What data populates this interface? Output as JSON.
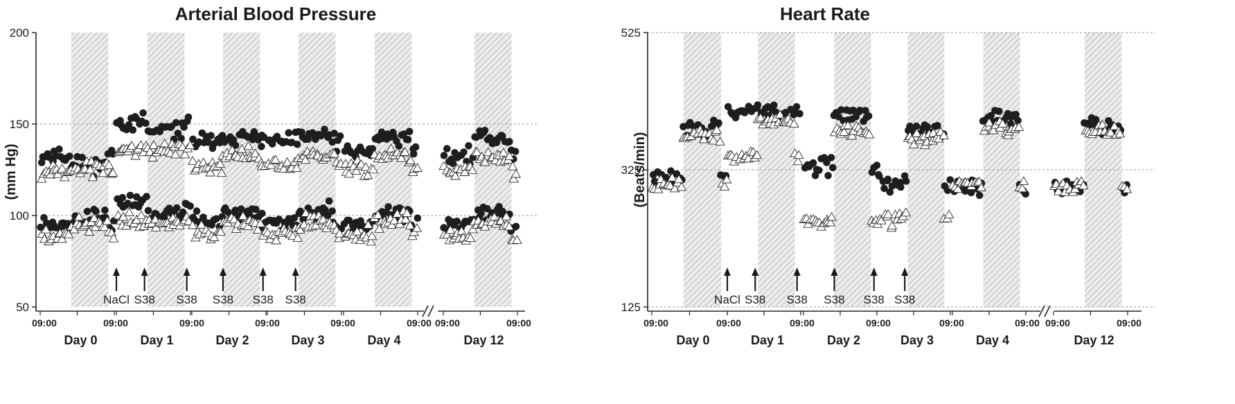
{
  "chart_data": [
    {
      "id": "bp",
      "type": "scatter",
      "title": "Arterial Blood Pressure",
      "ylabel": "(mm Hg)",
      "xlabel": "",
      "ylim": [
        50,
        200
      ],
      "yticks": [
        50,
        100,
        150,
        200
      ],
      "grid_y": [
        100,
        150
      ],
      "segments": [
        {
          "label": "Day 0",
          "start_tick": "09:00",
          "end_tick": "09:00",
          "dark_period": [
            0.42,
            0.92
          ]
        },
        {
          "label": "Day 1",
          "start_tick": "",
          "end_tick": "09:00",
          "dark_period": [
            0.42,
            0.92
          ]
        },
        {
          "label": "Day 2",
          "start_tick": "",
          "end_tick": "09:00",
          "dark_period": [
            0.42,
            0.92
          ]
        },
        {
          "label": "Day 3",
          "start_tick": "",
          "end_tick": "09:00",
          "dark_period": [
            0.42,
            0.92
          ]
        },
        {
          "label": "Day 4",
          "start_tick": "",
          "end_tick": "09:00",
          "dark_period": [
            0.42,
            0.92
          ]
        },
        {
          "label": "Day 12",
          "start_tick": "09:00",
          "end_tick": "09:00",
          "dark_period": [
            0.42,
            0.92
          ]
        }
      ],
      "annotations": [
        {
          "text": "NaCl",
          "day": 1.0
        },
        {
          "text": "S38",
          "day": 1.38
        },
        {
          "text": "S38",
          "day": 1.95
        },
        {
          "text": "S38",
          "day": 2.42
        },
        {
          "text": "S38",
          "day": 2.96
        },
        {
          "text": "S38",
          "day": 3.38
        }
      ],
      "series": [
        {
          "marker": "filled-circle",
          "measure": "systolic",
          "day_means": [
            {
              "day": 0,
              "light": 133,
              "dark": 128
            },
            {
              "day": 1,
              "light": 151,
              "dark": 146
            },
            {
              "day": 2,
              "light": 140,
              "dark": 143
            },
            {
              "day": 3,
              "light": 140,
              "dark": 143
            },
            {
              "day": 4,
              "light": 135,
              "dark": 143
            },
            {
              "day": 12,
              "light": 133,
              "dark": 142
            }
          ]
        },
        {
          "marker": "open-triangle",
          "measure": "systolic",
          "day_means": [
            {
              "day": 0,
              "light": 124,
              "dark": 126
            },
            {
              "day": 1,
              "light": 136,
              "dark": 136
            },
            {
              "day": 2,
              "light": 127,
              "dark": 133
            },
            {
              "day": 3,
              "light": 127,
              "dark": 133
            },
            {
              "day": 4,
              "light": 126,
              "dark": 133
            },
            {
              "day": 12,
              "light": 124,
              "dark": 132
            }
          ]
        },
        {
          "marker": "filled-circle",
          "measure": "diastolic",
          "day_means": [
            {
              "day": 0,
              "light": 94,
              "dark": 98
            },
            {
              "day": 1,
              "light": 107,
              "dark": 101
            },
            {
              "day": 2,
              "light": 97,
              "dark": 101
            },
            {
              "day": 3,
              "light": 96,
              "dark": 101
            },
            {
              "day": 4,
              "light": 95,
              "dark": 101
            },
            {
              "day": 12,
              "light": 94,
              "dark": 101
            }
          ]
        },
        {
          "marker": "open-triangle",
          "measure": "diastolic",
          "day_means": [
            {
              "day": 0,
              "light": 90,
              "dark": 95
            },
            {
              "day": 1,
              "light": 98,
              "dark": 96
            },
            {
              "day": 2,
              "light": 91,
              "dark": 96
            },
            {
              "day": 3,
              "light": 90,
              "dark": 96
            },
            {
              "day": 4,
              "light": 90,
              "dark": 96
            },
            {
              "day": 12,
              "light": 88,
              "dark": 96
            }
          ]
        }
      ]
    },
    {
      "id": "hr",
      "type": "scatter",
      "title": "Heart Rate",
      "ylabel": "(Beats/min)",
      "xlabel": "",
      "ylim": [
        125,
        525
      ],
      "yticks": [
        125,
        325,
        525
      ],
      "grid_y": [
        125,
        325,
        525
      ],
      "segments": [
        {
          "label": "Day 0",
          "start_tick": "09:00",
          "end_tick": "09:00",
          "dark_period": [
            0.42,
            0.92
          ]
        },
        {
          "label": "Day 1",
          "start_tick": "",
          "end_tick": "09:00",
          "dark_period": [
            0.42,
            0.92
          ]
        },
        {
          "label": "Day 2",
          "start_tick": "",
          "end_tick": "09:00",
          "dark_period": [
            0.42,
            0.92
          ]
        },
        {
          "label": "Day 3",
          "start_tick": "",
          "end_tick": "09:00",
          "dark_period": [
            0.42,
            0.92
          ]
        },
        {
          "label": "Day 4",
          "start_tick": "",
          "end_tick": "09:00",
          "dark_period": [
            0.42,
            0.92
          ]
        },
        {
          "label": "Day 12",
          "start_tick": "09:00",
          "end_tick": "09:00",
          "dark_period": [
            0.42,
            0.92
          ]
        }
      ],
      "annotations": [
        {
          "text": "NaCl",
          "day": 1.0
        },
        {
          "text": "S38",
          "day": 1.38
        },
        {
          "text": "S38",
          "day": 1.95
        },
        {
          "text": "S38",
          "day": 2.42
        },
        {
          "text": "S38",
          "day": 2.96
        },
        {
          "text": "S38",
          "day": 3.38
        }
      ],
      "series": [
        {
          "marker": "filled-circle",
          "measure": "heart_rate",
          "day_means": [
            {
              "day": 0,
              "light": 312,
              "dark": 385
            },
            {
              "day": 1,
              "light": 410,
              "dark": 410
            },
            {
              "day": 2,
              "light": 330,
              "dark": 405
            },
            {
              "day": 3,
              "light": 305,
              "dark": 385
            },
            {
              "day": 4,
              "light": 300,
              "dark": 400
            },
            {
              "day": 12,
              "light": 300,
              "dark": 390
            }
          ]
        },
        {
          "marker": "open-triangle",
          "measure": "heart_rate",
          "day_means": [
            {
              "day": 0,
              "light": 305,
              "dark": 375
            },
            {
              "day": 1,
              "light": 345,
              "dark": 395
            },
            {
              "day": 2,
              "light": 250,
              "dark": 380
            },
            {
              "day": 3,
              "light": 255,
              "dark": 370
            },
            {
              "day": 4,
              "light": 305,
              "dark": 385
            },
            {
              "day": 12,
              "light": 300,
              "dark": 380
            }
          ]
        }
      ]
    }
  ]
}
